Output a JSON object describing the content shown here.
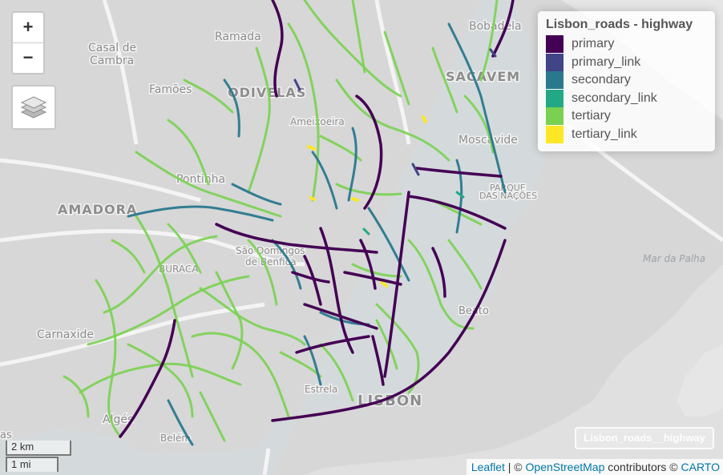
{
  "map": {
    "places": [
      {
        "name": "Bobadela",
        "type": "minor"
      },
      {
        "name": "Casal de",
        "type": "minor"
      },
      {
        "name": "Cambra",
        "type": "minor"
      },
      {
        "name": "Ramada",
        "type": "minor"
      },
      {
        "name": "ODIVELAS",
        "type": "major"
      },
      {
        "name": "Famões",
        "type": "minor"
      },
      {
        "name": "SACAVEM",
        "type": "major"
      },
      {
        "name": "Ameixoeira",
        "type": "minor"
      },
      {
        "name": "Moscavide",
        "type": "minor"
      },
      {
        "name": "PARQUE",
        "type": "small"
      },
      {
        "name": "DAS NAÇÕES",
        "type": "small"
      },
      {
        "name": "Pontinha",
        "type": "minor"
      },
      {
        "name": "AMADORA",
        "type": "major"
      },
      {
        "name": "São Domingos",
        "type": "minor"
      },
      {
        "name": "de Benfica",
        "type": "minor"
      },
      {
        "name": "BURACA",
        "type": "small"
      },
      {
        "name": "Mar da Palha",
        "type": "water"
      },
      {
        "name": "Beato",
        "type": "minor"
      },
      {
        "name": "Carnaxide",
        "type": "minor"
      },
      {
        "name": "Estrela",
        "type": "minor"
      },
      {
        "name": "LISBON",
        "type": "major"
      },
      {
        "name": "Algés",
        "type": "minor"
      },
      {
        "name": "Belém",
        "type": "minor"
      },
      {
        "name": "as",
        "type": "minor"
      }
    ],
    "highway_colors": {
      "primary": "#440154",
      "primary_link": "#414487",
      "secondary": "#2a788e",
      "secondary_link": "#22a884",
      "tertiary": "#7ad151",
      "tertiary_link": "#fde725"
    }
  },
  "controls": {
    "zoom_in": "+",
    "zoom_out": "−",
    "layers_icon": "layers-icon"
  },
  "legend": {
    "title": "Lisbon_roads - highway",
    "items": [
      {
        "label": "primary",
        "color": "#440154"
      },
      {
        "label": "primary_link",
        "color": "#414487"
      },
      {
        "label": "secondary",
        "color": "#2a788e"
      },
      {
        "label": "secondary_link",
        "color": "#22a884"
      },
      {
        "label": "tertiary",
        "color": "#7ad151"
      },
      {
        "label": "tertiary_link",
        "color": "#fde725"
      }
    ]
  },
  "scale": {
    "metric": "2 km",
    "imperial": "1 mi"
  },
  "layer_label": "Lisbon_roads__highway",
  "attribution": {
    "leaflet": "Leaflet",
    "sep": "| ©",
    "osm": "OpenStreetMap",
    "contrib": "contributors ©",
    "carto": "CARTO"
  }
}
